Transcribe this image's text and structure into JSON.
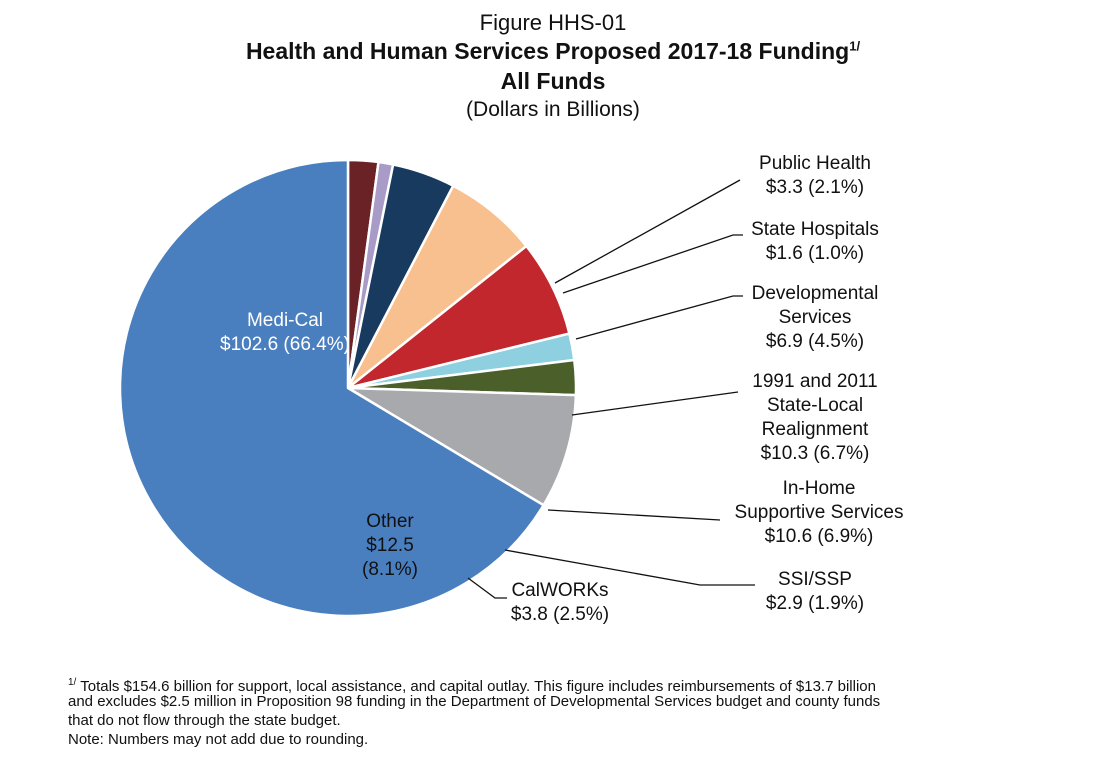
{
  "header": {
    "figure_label": "Figure HHS-01",
    "title_line1": "Health and Human Services Proposed 2017-18 Funding",
    "title_superscript": "1/",
    "title_line2": "All Funds",
    "subtitle": "(Dollars in Billions)"
  },
  "chart_data": {
    "type": "pie",
    "title": "Health and Human Services Proposed 2017-18 Funding — All Funds",
    "unit": "Dollars in Billions",
    "total": 154.6,
    "start": "12 o'clock, clockwise",
    "slices": [
      {
        "name": "Public Health",
        "value": 3.3,
        "percent": 2.1,
        "color": "#6b2226",
        "label": [
          "Public Health",
          "$3.3 (2.1%)"
        ]
      },
      {
        "name": "State Hospitals",
        "value": 1.6,
        "percent": 1.0,
        "color": "#a89bc7",
        "label": [
          "State Hospitals",
          "$1.6 (1.0%)"
        ]
      },
      {
        "name": "Developmental Services",
        "value": 6.9,
        "percent": 4.5,
        "color": "#173a5e",
        "label": [
          "Developmental",
          "Services",
          "$6.9 (4.5%)"
        ]
      },
      {
        "name": "1991 and 2011 State-Local Realignment",
        "value": 10.3,
        "percent": 6.7,
        "color": "#f8c08e",
        "label": [
          "1991 and 2011",
          "State-Local",
          "Realignment",
          "$10.3 (6.7%)"
        ]
      },
      {
        "name": "In-Home Supportive Services",
        "value": 10.6,
        "percent": 6.9,
        "color": "#c1272d",
        "label": [
          "In-Home",
          "Supportive Services",
          "$10.6 (6.9%)"
        ]
      },
      {
        "name": "SSI/SSP",
        "value": 2.9,
        "percent": 1.9,
        "color": "#8ecfe0",
        "label": [
          "SSI/SSP",
          "$2.9 (1.9%)"
        ]
      },
      {
        "name": "CalWORKs",
        "value": 3.8,
        "percent": 2.5,
        "color": "#4b5f2a",
        "label": [
          "CalWORKs",
          "$3.8 (2.5%)"
        ]
      },
      {
        "name": "Other",
        "value": 12.5,
        "percent": 8.1,
        "color": "#a8a9ad",
        "label": [
          "Other",
          "$12.5",
          "(8.1%)"
        ]
      },
      {
        "name": "Medi-Cal",
        "value": 102.6,
        "percent": 66.4,
        "color": "#4a7fbf",
        "label": [
          "Medi-Cal",
          "$102.6 (66.4%)"
        ]
      }
    ]
  },
  "footnotes": {
    "marker": "1/",
    "line1": " Totals $154.6 billion for support, local assistance, and capital outlay.  This figure includes reimbursements of $13.7 billion",
    "line2": "and excludes $2.5 million in Proposition 98 funding in the Department of Developmental Services budget and county funds",
    "line3": "that do not flow through the state budget.",
    "note": "Note: Numbers may not add due to rounding."
  }
}
